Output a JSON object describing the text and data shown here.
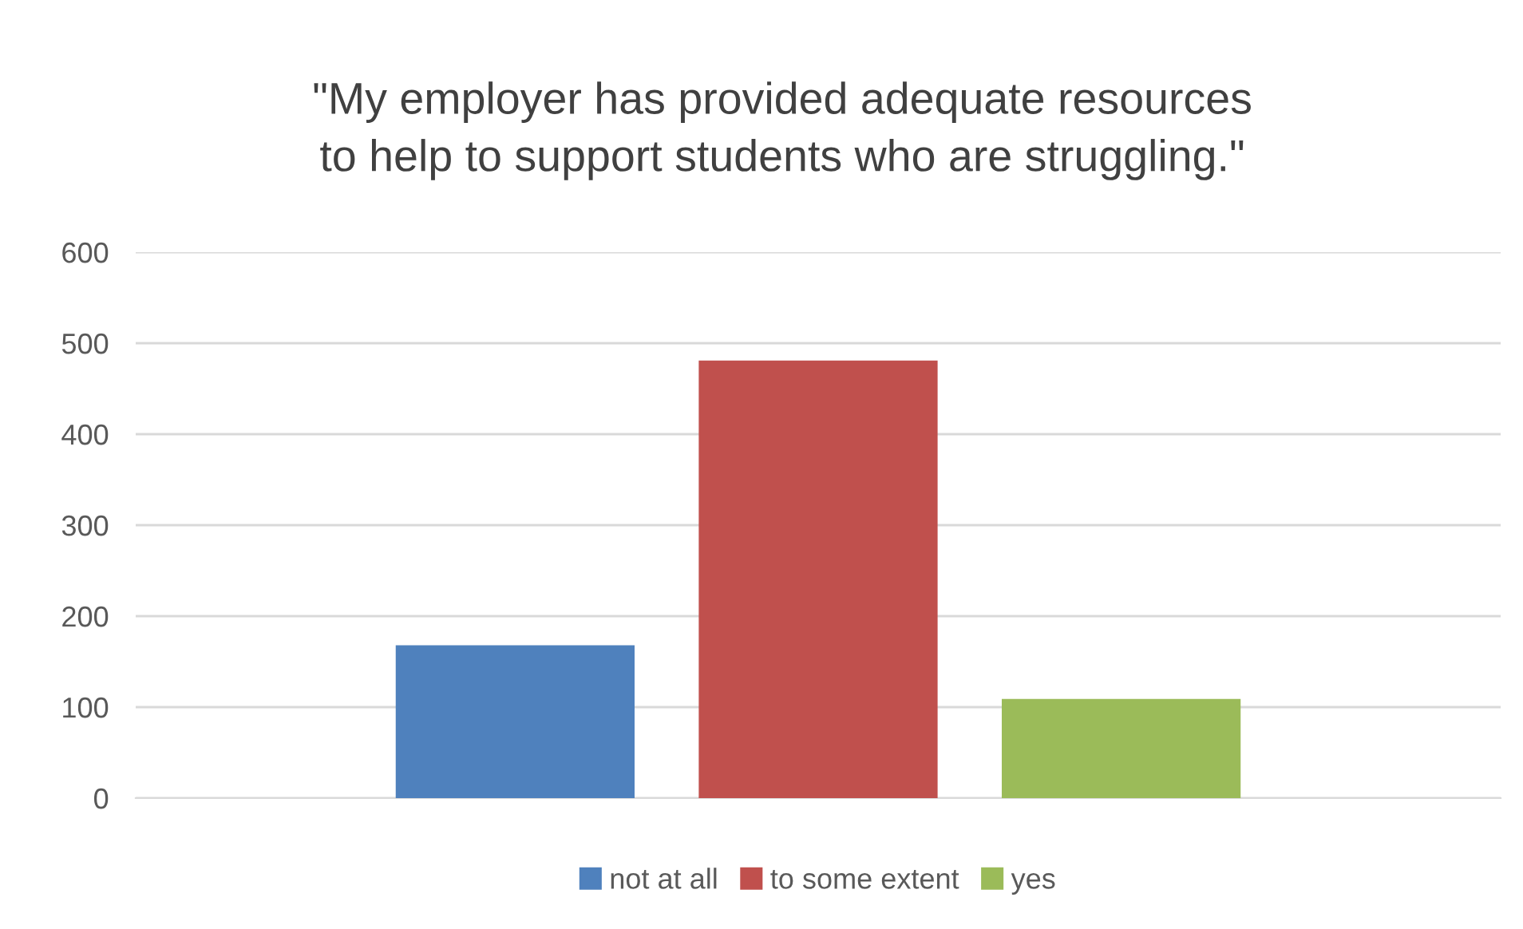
{
  "chart_data": {
    "type": "bar",
    "title": "\"My employer has provided adequate resources\nto help to support students who are struggling.\"",
    "categories": [
      null
    ],
    "series": [
      {
        "name": "not at all",
        "color": "#4f81bd",
        "values": [
          168
        ]
      },
      {
        "name": "to some extent",
        "color": "#c0504d",
        "values": [
          481
        ]
      },
      {
        "name": "yes",
        "color": "#9bbb59",
        "values": [
          109
        ]
      }
    ],
    "ylim": [
      0,
      600
    ],
    "yticks": [
      0,
      100,
      200,
      300,
      400,
      500,
      600
    ],
    "grid": "y",
    "legend": "bottom"
  }
}
